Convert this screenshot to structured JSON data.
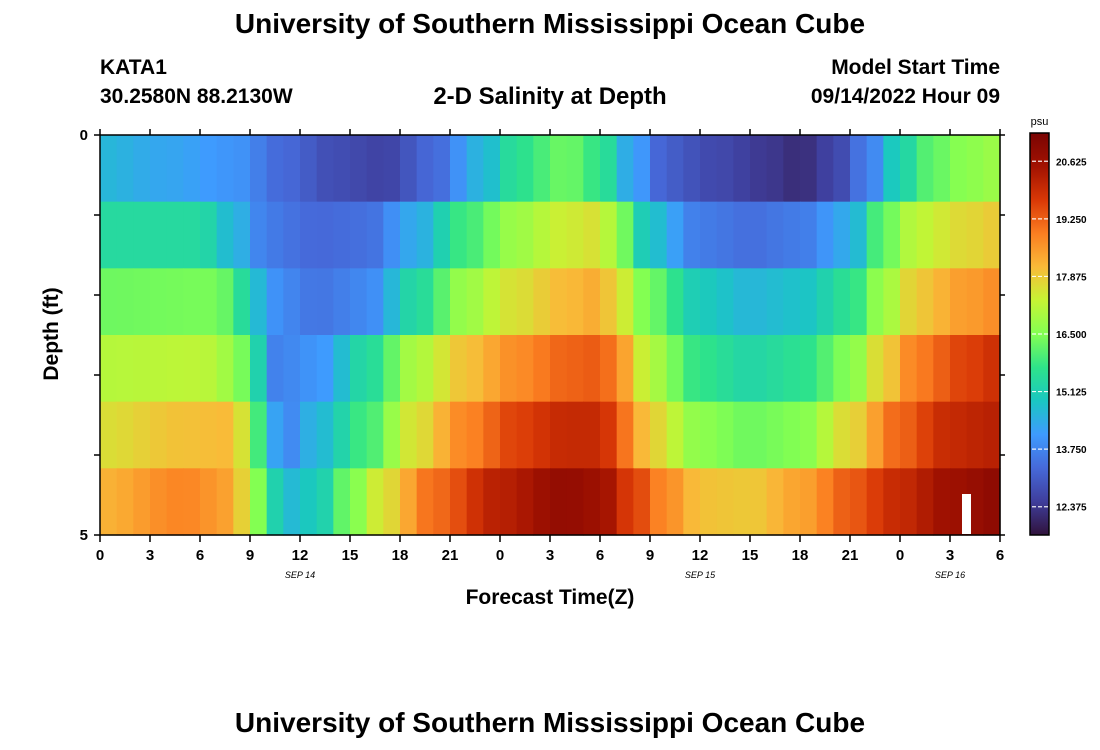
{
  "header": {
    "title": "University of Southern Mississippi Ocean Cube",
    "station_id": "KATA1",
    "coords": "30.2580N  88.2130W",
    "chart_title": "2-D Salinity at Depth",
    "start_label": "Model Start Time",
    "start_value": "09/14/2022 Hour 09"
  },
  "footer": {
    "title": "University of Southern Mississippi Ocean Cube"
  },
  "chart_data": {
    "type": "heatmap",
    "title": "2-D Salinity at Depth",
    "xlabel": "Forecast Time(Z)",
    "ylabel": "Depth (ft)",
    "x_ticks": [
      "0",
      "3",
      "6",
      "9",
      "12",
      "15",
      "18",
      "21",
      "0",
      "3",
      "6",
      "9",
      "12",
      "15",
      "18",
      "21",
      "0",
      "3",
      "6"
    ],
    "x_tick_hours": [
      0,
      3,
      6,
      9,
      12,
      15,
      18,
      21,
      24,
      27,
      30,
      33,
      36,
      39,
      42,
      45,
      48,
      51,
      54
    ],
    "x_range_hours": [
      0,
      54
    ],
    "date_labels": [
      {
        "text": "SEP 14",
        "hour": 12
      },
      {
        "text": "SEP 15",
        "hour": 36
      },
      {
        "text": "SEP 16",
        "hour": 51
      }
    ],
    "y_ticks": [
      "0",
      "5"
    ],
    "y_range": [
      0,
      5
    ],
    "depth_layers": [
      0,
      1,
      2,
      3,
      4,
      5
    ],
    "row_keyframes": [
      [
        [
          0,
          14.6
        ],
        [
          4,
          14.3
        ],
        [
          8,
          14.0
        ],
        [
          11,
          13.3
        ],
        [
          14,
          12.8
        ],
        [
          17,
          12.6
        ],
        [
          20,
          13.3
        ],
        [
          23,
          14.6
        ],
        [
          25,
          15.6
        ],
        [
          28,
          16.3
        ],
        [
          30,
          15.7
        ],
        [
          32,
          14.2
        ],
        [
          34,
          13.1
        ],
        [
          37,
          12.7
        ],
        [
          40,
          12.4
        ],
        [
          42,
          12.2
        ],
        [
          44,
          12.6
        ],
        [
          46,
          13.6
        ],
        [
          48,
          15.2
        ],
        [
          50,
          16.2
        ],
        [
          52,
          16.6
        ],
        [
          54,
          16.8
        ]
      ],
      [
        [
          0,
          15.4
        ],
        [
          6,
          15.4
        ],
        [
          8,
          14.6
        ],
        [
          10,
          13.6
        ],
        [
          13,
          13.3
        ],
        [
          16,
          13.4
        ],
        [
          19,
          14.4
        ],
        [
          22,
          15.9
        ],
        [
          25,
          16.8
        ],
        [
          28,
          17.4
        ],
        [
          30,
          17.6
        ],
        [
          31,
          16.6
        ],
        [
          33,
          14.8
        ],
        [
          36,
          13.6
        ],
        [
          39,
          13.4
        ],
        [
          42,
          13.6
        ],
        [
          45,
          14.4
        ],
        [
          47,
          16.2
        ],
        [
          49,
          17.2
        ],
        [
          52,
          17.7
        ],
        [
          54,
          17.9
        ]
      ],
      [
        [
          0,
          16.3
        ],
        [
          7,
          16.4
        ],
        [
          9,
          15.3
        ],
        [
          10,
          14.0
        ],
        [
          13,
          13.5
        ],
        [
          16,
          13.8
        ],
        [
          19,
          15.4
        ],
        [
          22,
          16.8
        ],
        [
          25,
          17.6
        ],
        [
          28,
          18.1
        ],
        [
          30,
          18.3
        ],
        [
          31,
          17.6
        ],
        [
          33,
          16.3
        ],
        [
          36,
          15.0
        ],
        [
          39,
          14.6
        ],
        [
          42,
          14.8
        ],
        [
          45,
          15.6
        ],
        [
          47,
          16.8
        ],
        [
          49,
          17.9
        ],
        [
          52,
          18.5
        ],
        [
          54,
          18.7
        ]
      ],
      [
        [
          0,
          17.1
        ],
        [
          6,
          17.2
        ],
        [
          8,
          16.8
        ],
        [
          9.5,
          15.2
        ],
        [
          10.5,
          13.7
        ],
        [
          13,
          14.0
        ],
        [
          16,
          15.4
        ],
        [
          19,
          17.0
        ],
        [
          22,
          18.0
        ],
        [
          25,
          18.7
        ],
        [
          28,
          19.2
        ],
        [
          30,
          19.3
        ],
        [
          31.5,
          18.4
        ],
        [
          33,
          17.0
        ],
        [
          36,
          15.7
        ],
        [
          39,
          15.3
        ],
        [
          42,
          15.6
        ],
        [
          45,
          16.5
        ],
        [
          47,
          17.8
        ],
        [
          49,
          18.9
        ],
        [
          52,
          19.6
        ],
        [
          54,
          19.9
        ]
      ],
      [
        [
          0,
          17.6
        ],
        [
          5,
          18.0
        ],
        [
          8,
          18.1
        ],
        [
          9,
          17.0
        ],
        [
          10,
          14.8
        ],
        [
          11,
          13.7
        ],
        [
          13,
          14.6
        ],
        [
          16,
          15.9
        ],
        [
          19,
          17.6
        ],
        [
          22,
          18.8
        ],
        [
          25,
          19.6
        ],
        [
          28,
          20.0
        ],
        [
          30,
          20.0
        ],
        [
          31.5,
          19.0
        ],
        [
          33,
          17.8
        ],
        [
          36,
          16.6
        ],
        [
          39,
          16.3
        ],
        [
          42,
          16.5
        ],
        [
          45,
          17.7
        ],
        [
          48,
          19.2
        ],
        [
          51,
          20.0
        ],
        [
          54,
          20.2
        ]
      ],
      [
        [
          0,
          18.2
        ],
        [
          5,
          18.8
        ],
        [
          8,
          18.4
        ],
        [
          9,
          17.2
        ],
        [
          10,
          15.8
        ],
        [
          11,
          14.6
        ],
        [
          13,
          15.0
        ],
        [
          15,
          16.4
        ],
        [
          17,
          17.6
        ],
        [
          20,
          19.1
        ],
        [
          24,
          20.2
        ],
        [
          28,
          20.8
        ],
        [
          30,
          20.6
        ],
        [
          32,
          19.6
        ],
        [
          34,
          18.7
        ],
        [
          36,
          18.0
        ],
        [
          39,
          17.9
        ],
        [
          42,
          18.4
        ],
        [
          45,
          19.3
        ],
        [
          48,
          20.0
        ],
        [
          51,
          20.6
        ],
        [
          54,
          20.9
        ]
      ]
    ],
    "value_range": [
      11.7,
      21.3
    ],
    "colorbar": {
      "unit": "psu",
      "labels": [
        "20.625",
        "19.250",
        "17.875",
        "16.500",
        "15.125",
        "13.750",
        "12.375"
      ],
      "values": [
        20.625,
        19.25,
        17.875,
        16.5,
        15.125,
        13.75,
        12.375
      ],
      "min": 11.7,
      "max": 21.3
    },
    "colorscale": [
      "#30123b",
      "#3f3e9c",
      "#4669d9",
      "#3e9bfe",
      "#1ac7c2",
      "#2ee38a",
      "#83ff52",
      "#c6f434",
      "#f9ba38",
      "#fb7e21",
      "#d93806",
      "#a21201",
      "#7a0403"
    ]
  }
}
